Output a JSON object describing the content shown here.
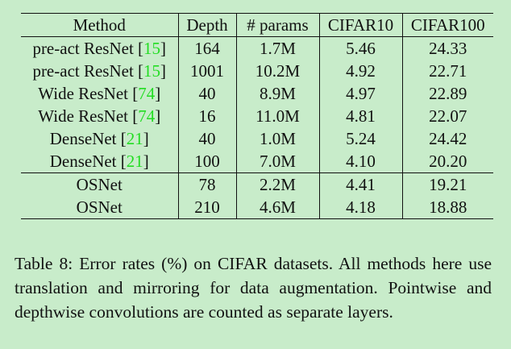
{
  "table": {
    "headers": [
      "Method",
      "Depth",
      "# params",
      "CIFAR10",
      "CIFAR100"
    ],
    "rows_baselines": [
      {
        "method": "pre-act ResNet",
        "ref": "15",
        "depth": "164",
        "params": "1.7M",
        "cifar10": "5.46",
        "cifar100": "24.33"
      },
      {
        "method": "pre-act ResNet",
        "ref": "15",
        "depth": "1001",
        "params": "10.2M",
        "cifar10": "4.92",
        "cifar100": "22.71"
      },
      {
        "method": "Wide ResNet",
        "ref": "74",
        "depth": "40",
        "params": "8.9M",
        "cifar10": "4.97",
        "cifar100": "22.89"
      },
      {
        "method": "Wide ResNet",
        "ref": "74",
        "depth": "16",
        "params": "11.0M",
        "cifar10": "4.81",
        "cifar100": "22.07"
      },
      {
        "method": "DenseNet",
        "ref": "21",
        "depth": "40",
        "params": "1.0M",
        "cifar10": "5.24",
        "cifar100": "24.42"
      },
      {
        "method": "DenseNet",
        "ref": "21",
        "depth": "100",
        "params": "7.0M",
        "cifar10": "4.10",
        "cifar100": "20.20"
      }
    ],
    "rows_ours": [
      {
        "method": "OSNet",
        "depth": "78",
        "params": "2.2M",
        "cifar10": "4.41",
        "cifar100": "19.21"
      },
      {
        "method": "OSNet",
        "depth": "210",
        "params": "4.6M",
        "cifar10": "4.18",
        "cifar100": "18.88"
      }
    ],
    "bold_cells": [
      "DenseNet-100 CIFAR10 4.10",
      "OSNet-210 CIFAR100 18.88"
    ]
  },
  "caption": "Table 8: Error rates (%) on CIFAR datasets. All methods here use translation and mirroring for data augmentation. Pointwise and depthwise convolutions are counted as separate layers.",
  "colors": {
    "background": "#c8ecca",
    "reference_link": "#22dd22",
    "text": "#111111"
  }
}
